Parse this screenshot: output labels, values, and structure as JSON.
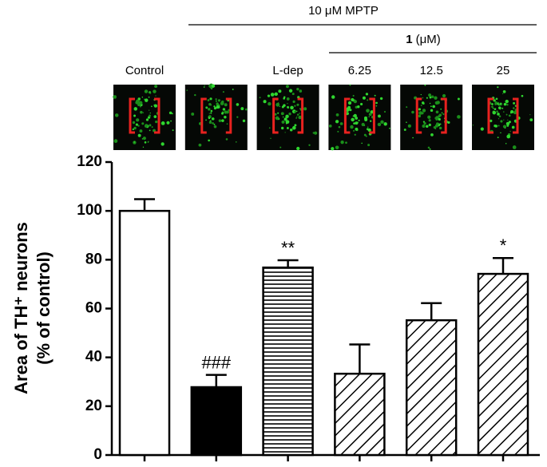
{
  "chart_data": {
    "type": "bar",
    "y_label_line1": "Area of TH⁺ neurons",
    "y_label_line2": "(% of control)",
    "treatment_label": "10 μM MPTP",
    "compound": "1",
    "compound_unit": "(μM)",
    "categories": [
      "Control",
      null,
      "L-dep",
      "6.25",
      "12.5",
      "25"
    ],
    "values": [
      100,
      27.8,
      76.8,
      33.3,
      55.2,
      74.2
    ],
    "errors": [
      4.8,
      5,
      3,
      12,
      7,
      6.5
    ],
    "annotations": [
      null,
      "###",
      "**",
      null,
      null,
      "*"
    ],
    "patterns": [
      "none",
      "solid",
      "horizontal",
      "diagonal",
      "diagonal",
      "diagonal"
    ],
    "color": "#000000",
    "ylim": [
      0,
      120
    ],
    "yticks": [
      0,
      20,
      40,
      60,
      80,
      100,
      120
    ]
  }
}
